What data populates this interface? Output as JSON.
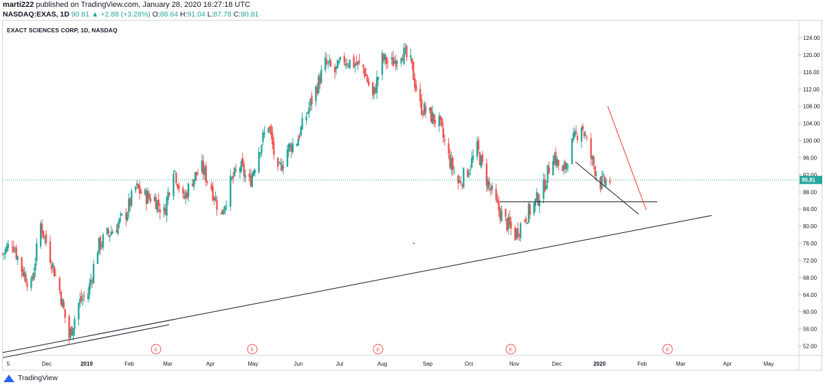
{
  "header": {
    "user": "marti222",
    "published": " published on TradingView.com, January 28, 2020 16:27:18 UTC",
    "symbol": "NASDAQ:EXAS, 1D",
    "price": "90.81",
    "change_icon": "triangle-up-icon",
    "change": "+2.88 (+3.28%)",
    "o_label": "O:",
    "o_value": "88.64",
    "h_label": "H:",
    "h_value": "91.04",
    "l_label": "L:",
    "l_value": "87.78",
    "c_label": "C:",
    "c_value": "90.81"
  },
  "footer": {
    "brand": "TradingView",
    "logo_icon": "tradingview-logo-icon"
  },
  "colors": {
    "up": "#26a69a",
    "down": "#ef5350",
    "trendline_red": "#ef5350",
    "trendline_black": "#131722",
    "price_tag": "#26a69a"
  },
  "chart_data": {
    "type": "candlestick",
    "title": "EXACT SCIENCES CORP, 1D, NASDAQ",
    "grid": false,
    "price_axis_side": "right",
    "ylim": [
      48,
      126
    ],
    "y_ticks": [
      "124.00",
      "120.00",
      "116.00",
      "112.00",
      "108.00",
      "104.00",
      "100.00",
      "96.00",
      "92.00",
      "88.00",
      "84.00",
      "80.00",
      "76.00",
      "72.00",
      "68.00",
      "64.00",
      "60.00",
      "56.00",
      "52.00"
    ],
    "current_price": "90.81",
    "x_ticks": [
      "5",
      "Dec",
      "2019",
      "Feb",
      "Mar",
      "Apr",
      "May",
      "Jun",
      "Jul",
      "Aug",
      "Sep",
      "Oct",
      "Nov",
      "Dec",
      "2020",
      "Feb",
      "Mar",
      "Apr",
      "May"
    ],
    "earnings_marker": "E",
    "earnings_months": [
      "Feb",
      "Apr",
      "Jul",
      "Oct",
      "Feb"
    ],
    "close_path": [
      [
        "2018-11-05",
        73.5
      ],
      [
        "2018-11-12",
        76.5
      ],
      [
        "2018-11-19",
        70.0
      ],
      [
        "2018-11-26",
        66.0
      ],
      [
        "2018-12-03",
        80.5
      ],
      [
        "2018-12-10",
        73.0
      ],
      [
        "2018-12-17",
        65.0
      ],
      [
        "2018-12-24",
        54.0
      ],
      [
        "2018-12-31",
        62.0
      ],
      [
        "2019-01-07",
        64.5
      ],
      [
        "2019-01-14",
        75.0
      ],
      [
        "2019-01-21",
        78.0
      ],
      [
        "2019-01-28",
        80.0
      ],
      [
        "2019-02-04",
        83.0
      ],
      [
        "2019-02-11",
        89.0
      ],
      [
        "2019-02-18",
        87.0
      ],
      [
        "2019-02-25",
        86.5
      ],
      [
        "2019-03-04",
        83.0
      ],
      [
        "2019-03-11",
        94.0
      ],
      [
        "2019-03-18",
        86.0
      ],
      [
        "2019-03-25",
        91.0
      ],
      [
        "2019-04-01",
        93.5
      ],
      [
        "2019-04-08",
        89.0
      ],
      [
        "2019-04-15",
        82.5
      ],
      [
        "2019-04-22",
        90.0
      ],
      [
        "2019-04-29",
        94.0
      ],
      [
        "2019-05-06",
        90.0
      ],
      [
        "2019-05-13",
        98.0
      ],
      [
        "2019-05-20",
        104.0
      ],
      [
        "2019-05-27",
        92.0
      ],
      [
        "2019-06-03",
        98.0
      ],
      [
        "2019-06-10",
        100.0
      ],
      [
        "2019-06-17",
        106.0
      ],
      [
        "2019-06-24",
        112.0
      ],
      [
        "2019-07-01",
        118.0
      ],
      [
        "2019-07-08",
        116.0
      ],
      [
        "2019-07-15",
        119.0
      ],
      [
        "2019-07-22",
        118.0
      ],
      [
        "2019-07-29",
        117.0
      ],
      [
        "2019-08-05",
        110.0
      ],
      [
        "2019-08-12",
        119.0
      ],
      [
        "2019-08-19",
        118.0
      ],
      [
        "2019-08-26",
        121.0
      ],
      [
        "2019-09-02",
        118.0
      ],
      [
        "2019-09-09",
        108.0
      ],
      [
        "2019-09-16",
        106.0
      ],
      [
        "2019-09-23",
        104.0
      ],
      [
        "2019-09-30",
        96.0
      ],
      [
        "2019-10-07",
        90.0
      ],
      [
        "2019-10-14",
        93.0
      ],
      [
        "2019-10-21",
        98.0
      ],
      [
        "2019-10-28",
        91.0
      ],
      [
        "2019-11-04",
        85.0
      ],
      [
        "2019-11-11",
        81.0
      ],
      [
        "2019-11-18",
        78.0
      ],
      [
        "2019-11-25",
        82.0
      ],
      [
        "2019-12-02",
        85.0
      ],
      [
        "2019-12-09",
        89.0
      ],
      [
        "2019-12-16",
        97.0
      ],
      [
        "2019-12-23",
        92.0
      ],
      [
        "2019-12-30",
        99.0
      ],
      [
        "2020-01-06",
        104.0
      ],
      [
        "2020-01-13",
        96.0
      ],
      [
        "2020-01-20",
        90.0
      ],
      [
        "2020-01-27",
        90.81
      ]
    ]
  }
}
